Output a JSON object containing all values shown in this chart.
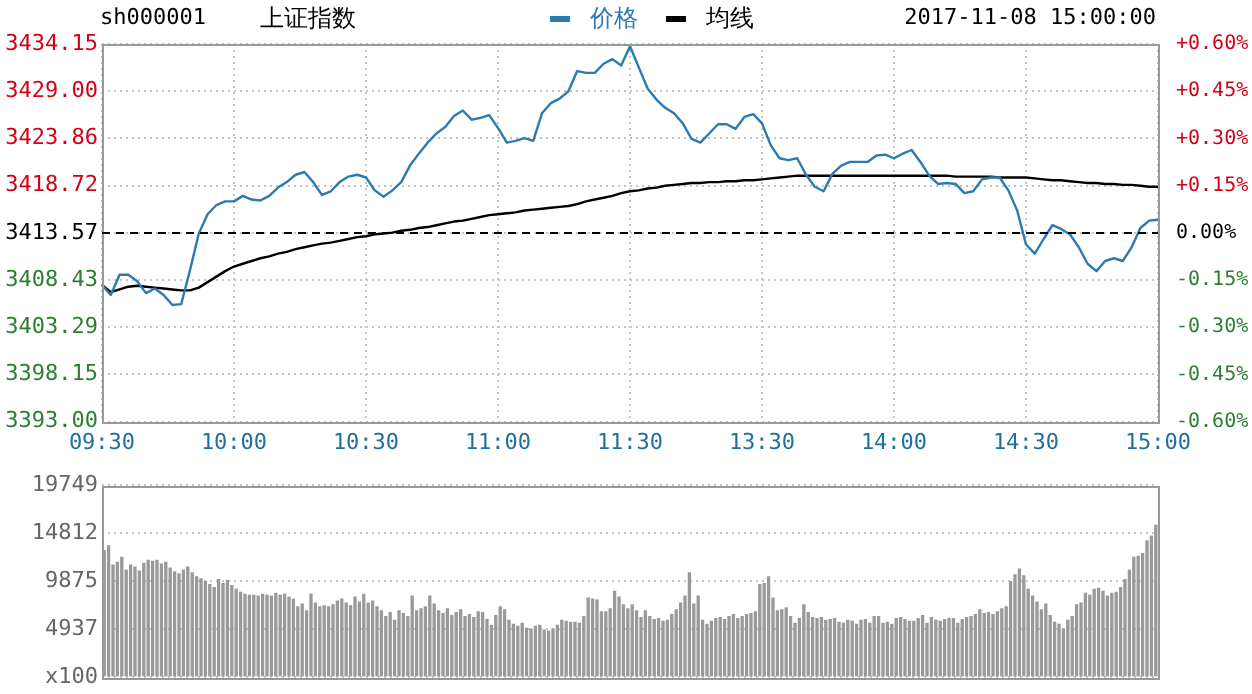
{
  "chart_data": [
    {
      "type": "line",
      "title": "上证指数",
      "annotations": [
        "sh000001",
        "2017-11-08 15:00:00"
      ],
      "categories": [
        "09:30",
        null,
        null,
        null,
        null,
        null,
        null,
        null,
        null,
        null,
        null,
        null,
        null,
        null,
        null,
        "10:00",
        null,
        null,
        null,
        null,
        null,
        null,
        null,
        null,
        null,
        null,
        null,
        null,
        null,
        null,
        "10:30",
        null,
        null,
        null,
        null,
        null,
        null,
        null,
        null,
        null,
        null,
        null,
        null,
        null,
        null,
        "11:00",
        null,
        null,
        null,
        null,
        null,
        null,
        null,
        null,
        null,
        null,
        null,
        null,
        null,
        null,
        "11:30",
        null,
        null,
        null,
        null,
        null,
        null,
        null,
        null,
        null,
        null,
        null,
        null,
        null,
        null,
        "13:30",
        null,
        null,
        null,
        null,
        null,
        null,
        null,
        null,
        null,
        null,
        null,
        null,
        null,
        null,
        "14:00",
        null,
        null,
        null,
        null,
        null,
        null,
        null,
        null,
        null,
        null,
        null,
        null,
        null,
        null,
        "14:30",
        null,
        null,
        null,
        null,
        null,
        null,
        null,
        null,
        null,
        null,
        null,
        null,
        null,
        null,
        "15:00"
      ],
      "ylim": [
        3393.0,
        3434.15
      ],
      "yticks": [
        {
          "value": 3393.0,
          "label": "3393.00"
        },
        {
          "value": 3398.15,
          "label": "3398.15"
        },
        {
          "value": 3403.29,
          "label": "3403.29"
        },
        {
          "value": 3408.43,
          "label": "3408.43"
        },
        {
          "value": 3413.57,
          "label": "3413.57"
        },
        {
          "value": 3418.72,
          "label": "3418.72"
        },
        {
          "value": 3423.86,
          "label": "3423.86"
        },
        {
          "value": 3429.0,
          "label": "3429.00"
        },
        {
          "value": 3434.15,
          "label": "3434.15"
        }
      ],
      "y2lim": [
        -0.6,
        0.6
      ],
      "y2ticks": [
        {
          "value": -0.6,
          "label": "-0.60%"
        },
        {
          "value": -0.45,
          "label": "-0.45%"
        },
        {
          "value": -0.3,
          "label": "-0.30%"
        },
        {
          "value": -0.15,
          "label": "-0.15%"
        },
        {
          "value": 0,
          "label": "0.00%"
        },
        {
          "value": 0.15,
          "label": "+0.15%"
        },
        {
          "value": 0.3,
          "label": "+0.30%"
        },
        {
          "value": 0.45,
          "label": "+0.45%"
        },
        {
          "value": 0.6,
          "label": "+0.60%"
        }
      ],
      "ref_lines": [
        {
          "axis": "y",
          "value": 3413.57,
          "color": "#000000",
          "line_style": "dashed"
        }
      ],
      "grid": true,
      "legend": "top",
      "marker": "none",
      "line_style": "solid",
      "series": [
        {
          "name": "价格",
          "color": "#2b7bb0",
          "values": [
            3407.9,
            3406.8,
            3409.0,
            3409.0,
            3408.3,
            3407.0,
            3407.5,
            3406.8,
            3405.7,
            3405.8,
            3409.5,
            3413.5,
            3415.6,
            3416.6,
            3417.0,
            3417.0,
            3417.6,
            3417.2,
            3417.1,
            3417.6,
            3418.5,
            3419.1,
            3419.9,
            3420.2,
            3419.1,
            3417.7,
            3418.1,
            3419.1,
            3419.7,
            3419.9,
            3419.6,
            3418.2,
            3417.5,
            3418.2,
            3419.1,
            3420.9,
            3422.2,
            3423.4,
            3424.4,
            3425.1,
            3426.3,
            3426.9,
            3425.9,
            3426.1,
            3426.4,
            3425.0,
            3423.4,
            3423.6,
            3423.9,
            3423.6,
            3426.6,
            3427.7,
            3428.2,
            3429.0,
            3431.2,
            3431.0,
            3431.0,
            3432.0,
            3432.5,
            3431.8,
            3433.9,
            3431.6,
            3429.3,
            3428.1,
            3427.2,
            3426.6,
            3425.5,
            3423.8,
            3423.4,
            3424.4,
            3425.4,
            3425.4,
            3424.9,
            3426.2,
            3426.5,
            3425.5,
            3423.1,
            3421.7,
            3421.5,
            3421.7,
            3419.9,
            3418.6,
            3418.1,
            3420.0,
            3420.9,
            3421.3,
            3421.3,
            3421.3,
            3422.0,
            3422.1,
            3421.7,
            3422.2,
            3422.6,
            3421.3,
            3419.8,
            3418.9,
            3419.0,
            3418.9,
            3417.9,
            3418.1,
            3419.4,
            3419.6,
            3419.6,
            3418.2,
            3416.0,
            3412.3,
            3411.3,
            3412.9,
            3414.4,
            3414.0,
            3413.4,
            3412.0,
            3410.2,
            3409.4,
            3410.5,
            3410.8,
            3410.5,
            3412.0,
            3414.1,
            3414.9,
            3415.0
          ]
        },
        {
          "name": "均线",
          "color": "#000000",
          "values": [
            3407.9,
            3407.1,
            3407.4,
            3407.7,
            3407.8,
            3407.7,
            3407.6,
            3407.5,
            3407.4,
            3407.3,
            3407.3,
            3407.6,
            3408.2,
            3408.8,
            3409.4,
            3409.9,
            3410.2,
            3410.5,
            3410.8,
            3411.0,
            3411.3,
            3411.5,
            3411.8,
            3412.0,
            3412.2,
            3412.4,
            3412.5,
            3412.7,
            3412.9,
            3413.1,
            3413.2,
            3413.4,
            3413.5,
            3413.6,
            3413.8,
            3413.9,
            3414.1,
            3414.2,
            3414.4,
            3414.6,
            3414.8,
            3414.9,
            3415.1,
            3415.3,
            3415.5,
            3415.6,
            3415.7,
            3415.8,
            3416.0,
            3416.1,
            3416.2,
            3416.3,
            3416.4,
            3416.5,
            3416.7,
            3417.0,
            3417.2,
            3417.4,
            3417.6,
            3417.9,
            3418.1,
            3418.2,
            3418.4,
            3418.5,
            3418.7,
            3418.8,
            3418.9,
            3419.0,
            3419.0,
            3419.1,
            3419.1,
            3419.2,
            3419.2,
            3419.3,
            3419.3,
            3419.4,
            3419.5,
            3419.6,
            3419.7,
            3419.8,
            3419.8,
            3419.8,
            3419.8,
            3419.8,
            3419.8,
            3419.8,
            3419.8,
            3419.8,
            3419.8,
            3419.8,
            3419.8,
            3419.8,
            3419.8,
            3419.8,
            3419.8,
            3419.8,
            3419.8,
            3419.7,
            3419.7,
            3419.7,
            3419.7,
            3419.7,
            3419.6,
            3419.6,
            3419.6,
            3419.6,
            3419.5,
            3419.4,
            3419.3,
            3419.3,
            3419.2,
            3419.1,
            3419.0,
            3419.0,
            3418.9,
            3418.9,
            3418.8,
            3418.8,
            3418.7,
            3418.6,
            3418.6
          ]
        }
      ]
    },
    {
      "type": "bar",
      "tick_labels": "y",
      "grid": "y",
      "color": "#999999",
      "categories": [
        null,
        null,
        null,
        null,
        null,
        null,
        null,
        null,
        null,
        null,
        null,
        null,
        null,
        null,
        null,
        null,
        null,
        null,
        null,
        null,
        null,
        null,
        null,
        null,
        null,
        null,
        null,
        null,
        null,
        null,
        null,
        null,
        null,
        null,
        null,
        null,
        null,
        null,
        null,
        null,
        null,
        null,
        null,
        null,
        null,
        null,
        null,
        null,
        null,
        null,
        null,
        null,
        null,
        null,
        null,
        null,
        null,
        null,
        null,
        null,
        null,
        null,
        null,
        null,
        null,
        null,
        null,
        null,
        null,
        null,
        null,
        null,
        null,
        null,
        null,
        null,
        null,
        null,
        null,
        null,
        null,
        null,
        null,
        null,
        null,
        null,
        null,
        null,
        null,
        null,
        null,
        null,
        null,
        null,
        null,
        null,
        null,
        null,
        null,
        null,
        null,
        null,
        null,
        null,
        null,
        null,
        null,
        null,
        null,
        null,
        null,
        null,
        null,
        null,
        null,
        null,
        null,
        null,
        null,
        null,
        null,
        null,
        null,
        null,
        null,
        null,
        null,
        null,
        null,
        null,
        null,
        null,
        null,
        null,
        null,
        null,
        null,
        null,
        null,
        null,
        null,
        null,
        null,
        null,
        null,
        null,
        null,
        null,
        null,
        null,
        null,
        null,
        null,
        null,
        null,
        null,
        null,
        null,
        null,
        null,
        null,
        null,
        null,
        null,
        null,
        null,
        null,
        null,
        null,
        null,
        null,
        null,
        null,
        null,
        null,
        null,
        null,
        null,
        null,
        null,
        null,
        null,
        null,
        null,
        null,
        null,
        null,
        null,
        null,
        null,
        null,
        null,
        null,
        null,
        null,
        null,
        null,
        null,
        null,
        null,
        null,
        null,
        null,
        null,
        null,
        null,
        null,
        null,
        null,
        null,
        null,
        null,
        null,
        null,
        null,
        null,
        null,
        null,
        null,
        null,
        null,
        null,
        null,
        null,
        null,
        null,
        null,
        null,
        null,
        null,
        null,
        null,
        null,
        null,
        null,
        null,
        null,
        null,
        null,
        null
      ],
      "ylim": [
        0,
        19749
      ],
      "yticks": [
        {
          "value": 0,
          "label": "x100"
        },
        4937,
        9875,
        14812,
        19749
      ],
      "values": [
        13000,
        13500,
        11500,
        11800,
        12300,
        11000,
        11500,
        11300,
        10900,
        11700,
        12000,
        11900,
        12000,
        11600,
        11800,
        11200,
        10800,
        10600,
        11000,
        11300,
        10700,
        10300,
        10100,
        9800,
        9500,
        9200,
        10000,
        9600,
        9900,
        9400,
        9000,
        8700,
        8500,
        8400,
        8400,
        8300,
        8500,
        8400,
        8300,
        8600,
        8400,
        8500,
        8200,
        8000,
        7200,
        7500,
        6800,
        8500,
        7600,
        7200,
        7300,
        7200,
        7400,
        7800,
        8000,
        7600,
        7300,
        8200,
        7700,
        8500,
        7600,
        7800,
        7200,
        6800,
        6200,
        6600,
        5800,
        6800,
        6500,
        6200,
        8300,
        6800,
        7000,
        7200,
        8300,
        7500,
        6800,
        6500,
        7000,
        6300,
        6600,
        6900,
        6200,
        6400,
        6100,
        6700,
        6600,
        5900,
        5300,
        6300,
        7200,
        6900,
        5800,
        5400,
        5200,
        5500,
        5000,
        4900,
        5200,
        5300,
        4800,
        4700,
        4900,
        5300,
        5800,
        5700,
        5600,
        5600,
        5500,
        6200,
        8100,
        8000,
        7900,
        6700,
        6700,
        7000,
        8800,
        8200,
        7400,
        7000,
        7400,
        6800,
        6100,
        6800,
        6200,
        5900,
        6000,
        5700,
        5800,
        6400,
        6900,
        7600,
        8300,
        10700,
        7500,
        8300,
        5800,
        5400,
        5700,
        6000,
        6100,
        5900,
        6200,
        6400,
        6000,
        6200,
        6400,
        6500,
        6700,
        9500,
        9600,
        10300,
        8100,
        6800,
        6900,
        7100,
        6200,
        5500,
        6000,
        7400,
        6600,
        6100,
        6000,
        6100,
        5800,
        5900,
        6000,
        5600,
        5500,
        5800,
        5700,
        5400,
        5800,
        5900,
        5500,
        6200,
        6200,
        5500,
        5600,
        5400,
        6000,
        6100,
        5900,
        5700,
        5700,
        6000,
        6300,
        5500,
        6100,
        5800,
        5700,
        5900,
        6000,
        6000,
        5500,
        5900,
        6100,
        6200,
        6400,
        6900,
        6500,
        6600,
        6400,
        6700,
        7000,
        7200,
        9800,
        10500,
        11100,
        10400,
        9000,
        8300,
        7700,
        6900,
        7500,
        6300,
        5600,
        5400,
        4900,
        5800,
        6200,
        7400,
        7600,
        8600,
        8400,
        9000,
        9100,
        8800,
        8300,
        8600,
        8700,
        9200,
        10000,
        11000,
        12300,
        12400,
        12700,
        14000,
        14500,
        15600
      ]
    }
  ]
}
